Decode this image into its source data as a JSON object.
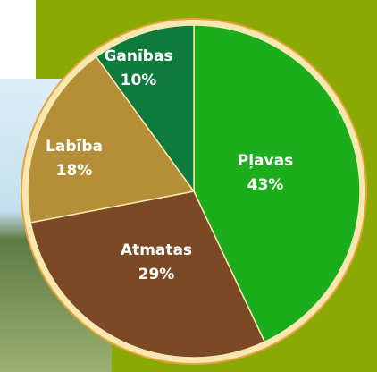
{
  "chart_data": {
    "type": "pie",
    "categories": [
      "Pļavas",
      "Atmatas",
      "Labība",
      "Ganības"
    ],
    "values": [
      43,
      29,
      18,
      10
    ],
    "value_labels": [
      "43%",
      "29%",
      "18%",
      "10%"
    ],
    "colors": [
      "#1bad1b",
      "#7c4926",
      "#b58f38",
      "#0e7b3d"
    ]
  }
}
